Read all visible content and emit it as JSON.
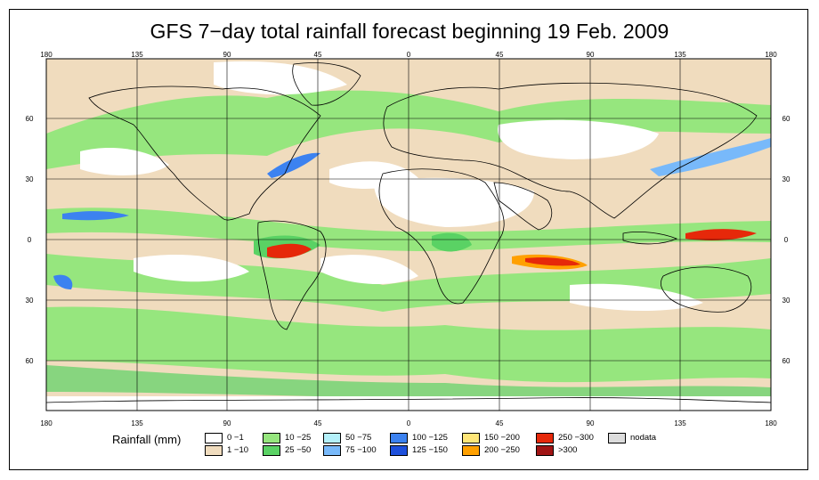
{
  "title": "GFS 7−day total rainfall forecast beginning 19 Feb. 2009",
  "longitude_ticks": [
    "180",
    "135",
    "90",
    "45",
    "0",
    "45",
    "90",
    "135",
    "180"
  ],
  "latitude_ticks": [
    "60",
    "30",
    "0",
    "30",
    "60"
  ],
  "legend": {
    "title": "Rainfall (mm)",
    "entries": [
      {
        "label": "0 −1",
        "color": "#ffffff"
      },
      {
        "label": "1 −10",
        "color": "#f0dcbe"
      },
      {
        "label": "10 −25",
        "color": "#96e67e"
      },
      {
        "label": "25 −50",
        "color": "#5ad264"
      },
      {
        "label": "50 −75",
        "color": "#b4f0fa"
      },
      {
        "label": "75 −100",
        "color": "#78b9fa"
      },
      {
        "label": "100 −125",
        "color": "#3c82f0"
      },
      {
        "label": "125 −150",
        "color": "#1e50dc"
      },
      {
        "label": "150 −200",
        "color": "#ffe678"
      },
      {
        "label": "200 −250",
        "color": "#ffa000"
      },
      {
        "label": "250 −300",
        "color": "#e6280a"
      },
      {
        "label": ">300",
        "color": "#a01414"
      },
      {
        "label": "nodata",
        "color": "#dcdcdc"
      }
    ]
  },
  "colors": {
    "ocean_base": "#f0dcbe",
    "dry": "#ffffff",
    "wet_light": "#96e67e",
    "wet_mid": "#5ad264",
    "blue_light": "#b4f0fa",
    "blue_mid": "#78b9fa",
    "blue_dark": "#3c82f0",
    "orange": "#ffa000",
    "red": "#e6280a",
    "darkred": "#a01414"
  }
}
